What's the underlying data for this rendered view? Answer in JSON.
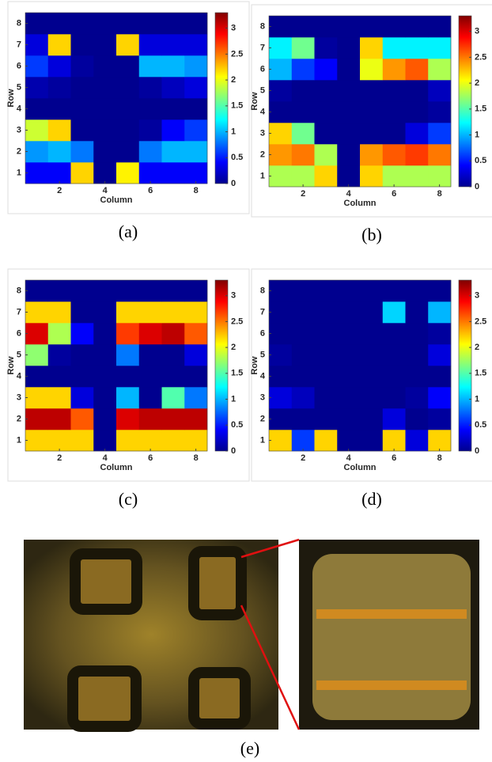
{
  "chart_data": [
    {
      "type": "heatmap",
      "caption": "(a)",
      "x_label": "Column",
      "y_label": "Row",
      "colormap": "jet",
      "x": [
        1,
        2,
        3,
        4,
        5,
        6,
        7,
        8
      ],
      "y": [
        1,
        2,
        3,
        4,
        5,
        6,
        7,
        8
      ],
      "xlim": [
        0.5,
        8.5
      ],
      "xticks": [
        2,
        4,
        6,
        8
      ],
      "ylim": [
        0.5,
        8.5
      ],
      "yticks": [
        1,
        2,
        3,
        4,
        5,
        6,
        7,
        8
      ],
      "clim": [
        0,
        3.3
      ],
      "cticks": [
        0,
        0.5,
        1,
        1.5,
        2,
        2.5,
        3
      ],
      "z": [
        [
          0.4,
          0.4,
          2.2,
          0.05,
          2.1,
          0.4,
          0.4,
          0.4
        ],
        [
          0.9,
          1.0,
          0.8,
          0.05,
          0.05,
          0.8,
          1.0,
          1.0
        ],
        [
          1.9,
          2.2,
          0.05,
          0.05,
          0.05,
          0.1,
          0.4,
          0.6
        ],
        [
          0.05,
          0.05,
          0.05,
          0.05,
          0.05,
          0.05,
          0.05,
          0.05
        ],
        [
          0.15,
          0.1,
          0.05,
          0.05,
          0.05,
          0.1,
          0.2,
          0.3
        ],
        [
          0.6,
          0.3,
          0.1,
          0.05,
          0.05,
          1.0,
          1.0,
          0.9
        ],
        [
          0.3,
          2.2,
          0.05,
          0.05,
          2.2,
          0.3,
          0.3,
          0.3
        ],
        [
          0.05,
          0.05,
          0.05,
          0.05,
          0.05,
          0.05,
          0.05,
          0.05
        ]
      ]
    },
    {
      "type": "heatmap",
      "caption": "(b)",
      "x_label": "Column",
      "y_label": "Row",
      "colormap": "jet",
      "x": [
        1,
        2,
        3,
        4,
        5,
        6,
        7,
        8
      ],
      "y": [
        1,
        2,
        3,
        4,
        5,
        6,
        7,
        8
      ],
      "xlim": [
        0.5,
        8.5
      ],
      "xticks": [
        2,
        4,
        6,
        8
      ],
      "ylim": [
        0.5,
        8.5
      ],
      "yticks": [
        1,
        2,
        3,
        4,
        5,
        6,
        7,
        8
      ],
      "clim": [
        0,
        3.3
      ],
      "cticks": [
        0,
        0.5,
        1,
        1.5,
        2,
        2.5,
        3
      ],
      "z": [
        [
          1.8,
          1.8,
          2.2,
          0.05,
          2.2,
          1.8,
          1.8,
          1.8
        ],
        [
          2.4,
          2.5,
          1.8,
          0.05,
          2.4,
          2.6,
          2.7,
          2.5
        ],
        [
          2.2,
          1.6,
          0.05,
          0.05,
          0.05,
          0.05,
          0.3,
          0.6
        ],
        [
          0.05,
          0.05,
          0.05,
          0.05,
          0.05,
          0.05,
          0.05,
          0.1
        ],
        [
          0.1,
          0.05,
          0.05,
          0.05,
          0.05,
          0.05,
          0.05,
          0.2
        ],
        [
          1.0,
          0.6,
          0.4,
          0.05,
          2.0,
          2.4,
          2.6,
          1.8
        ],
        [
          1.2,
          1.6,
          0.1,
          0.05,
          2.2,
          1.2,
          1.2,
          1.2
        ],
        [
          0.05,
          0.05,
          0.05,
          0.05,
          0.05,
          0.05,
          0.05,
          0.05
        ]
      ]
    },
    {
      "type": "heatmap",
      "caption": "(c)",
      "x_label": "Column",
      "y_label": "Row",
      "colormap": "jet",
      "x": [
        1,
        2,
        3,
        4,
        5,
        6,
        7,
        8
      ],
      "y": [
        1,
        2,
        3,
        4,
        5,
        6,
        7,
        8
      ],
      "xlim": [
        0.5,
        8.5
      ],
      "xticks": [
        2,
        4,
        6,
        8
      ],
      "ylim": [
        0.5,
        8.5
      ],
      "yticks": [
        1,
        2,
        3,
        4,
        5,
        6,
        7,
        8
      ],
      "clim": [
        0,
        3.3
      ],
      "cticks": [
        0,
        0.5,
        1,
        1.5,
        2,
        2.5,
        3
      ],
      "z": [
        [
          2.2,
          2.2,
          2.2,
          0.05,
          2.2,
          2.2,
          2.2,
          2.2
        ],
        [
          3.1,
          3.1,
          2.6,
          0.05,
          3.0,
          3.1,
          3.1,
          3.1
        ],
        [
          2.2,
          2.2,
          0.3,
          0.05,
          1.0,
          0.05,
          1.5,
          0.8
        ],
        [
          0.05,
          0.05,
          0.05,
          0.05,
          0.05,
          0.05,
          0.05,
          0.05
        ],
        [
          1.7,
          0.1,
          0.05,
          0.05,
          0.8,
          0.05,
          0.05,
          0.3
        ],
        [
          3.0,
          1.8,
          0.4,
          0.05,
          2.7,
          3.0,
          3.1,
          2.6
        ],
        [
          2.2,
          2.2,
          0.05,
          0.05,
          2.2,
          2.2,
          2.2,
          2.2
        ],
        [
          0.05,
          0.05,
          0.05,
          0.05,
          0.05,
          0.05,
          0.05,
          0.05
        ]
      ]
    },
    {
      "type": "heatmap",
      "caption": "(d)",
      "x_label": "Column",
      "y_label": "Row",
      "colormap": "jet",
      "x": [
        1,
        2,
        3,
        4,
        5,
        6,
        7,
        8
      ],
      "y": [
        1,
        2,
        3,
        4,
        5,
        6,
        7,
        8
      ],
      "xlim": [
        0.5,
        8.5
      ],
      "xticks": [
        2,
        4,
        6,
        8
      ],
      "ylim": [
        0.5,
        8.5
      ],
      "yticks": [
        1,
        2,
        3,
        4,
        5,
        6,
        7,
        8
      ],
      "clim": [
        0,
        3.3
      ],
      "cticks": [
        0,
        0.5,
        1,
        1.5,
        2,
        2.5,
        3
      ],
      "z": [
        [
          2.2,
          0.6,
          2.2,
          0.05,
          0.05,
          2.2,
          0.3,
          2.2
        ],
        [
          0.05,
          0.05,
          0.05,
          0.05,
          0.05,
          0.3,
          0.05,
          0.1
        ],
        [
          0.3,
          0.2,
          0.05,
          0.05,
          0.05,
          0.05,
          0.1,
          0.4
        ],
        [
          0.05,
          0.05,
          0.05,
          0.05,
          0.05,
          0.05,
          0.05,
          0.05
        ],
        [
          0.1,
          0.05,
          0.05,
          0.05,
          0.05,
          0.05,
          0.05,
          0.3
        ],
        [
          0.05,
          0.05,
          0.05,
          0.05,
          0.05,
          0.05,
          0.05,
          0.1
        ],
        [
          0.05,
          0.05,
          0.05,
          0.05,
          0.05,
          1.1,
          0.05,
          1.0
        ],
        [
          0.05,
          0.05,
          0.05,
          0.05,
          0.05,
          0.05,
          0.05,
          0.05
        ]
      ]
    }
  ],
  "photo": {
    "caption": "(e)"
  }
}
